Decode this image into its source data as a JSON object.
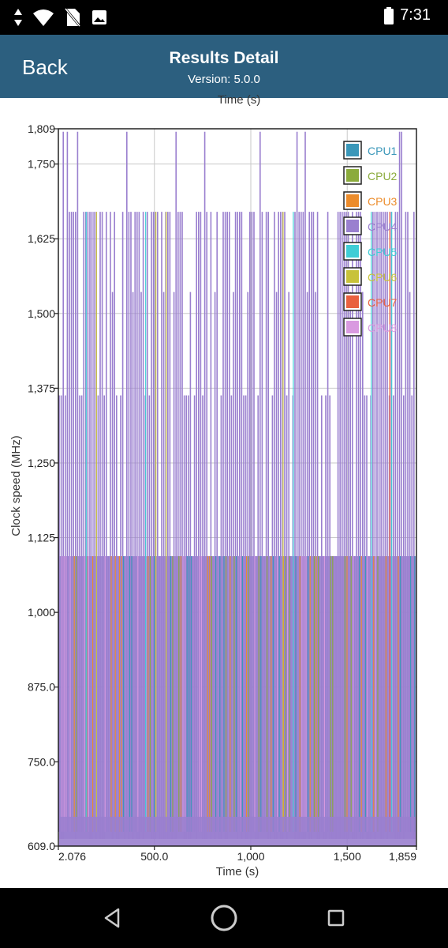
{
  "status_bar": {
    "time": "7:31",
    "icons": [
      "data-arrows-icon",
      "wifi-icon",
      "no-sim-icon",
      "image-notification-icon",
      "battery-icon"
    ]
  },
  "header": {
    "back_label": "Back",
    "title": "Results Detail",
    "subtitle": "Version: 5.0.0",
    "background": "#2c5f7f"
  },
  "chart_data": {
    "type": "line",
    "top_clipped_label": "Time (s)",
    "xlabel": "Time (s)",
    "ylabel": "Clock speed (MHz)",
    "xlim": [
      2.076,
      1859
    ],
    "ylim": [
      609,
      1809
    ],
    "x_ticks": [
      "2.076",
      "500.0",
      "1,000",
      "1,500",
      "1,859"
    ],
    "x_tick_values": [
      2.076,
      500,
      1000,
      1500,
      1859
    ],
    "y_ticks": [
      "609.0",
      "750.0",
      "875.0",
      "1,000",
      "1,125",
      "1,250",
      "1,375",
      "1,500",
      "1,625",
      "1,750",
      "1,809"
    ],
    "y_tick_values": [
      609,
      750,
      875,
      1000,
      1125,
      1250,
      1375,
      1500,
      1625,
      1750,
      1809
    ],
    "grid": true,
    "legend_position": "top-right",
    "frequency_levels_mhz": [
      633,
      1094,
      1363,
      1536,
      1670,
      1804
    ],
    "series": [
      {
        "name": "CPU1",
        "color": "#3a97b9",
        "pattern": "alternates between 633 and 1094 MHz"
      },
      {
        "name": "CPU2",
        "color": "#8bab3c",
        "pattern": "alternates between 633 and 1094 MHz"
      },
      {
        "name": "CPU3",
        "color": "#ec8c2b",
        "pattern": "alternates between 633 and 1094 MHz"
      },
      {
        "name": "CPU4",
        "color": "#9a7fcf",
        "pattern": "alternates between 633 and 1670 MHz, peaks at 1804 MHz"
      },
      {
        "name": "CPU5",
        "color": "#3fcdd6",
        "pattern": "alternates between 633 and 1670 MHz"
      },
      {
        "name": "CPU6",
        "color": "#c8c23a",
        "pattern": "alternates between 633 and 1670 MHz"
      },
      {
        "name": "CPU7",
        "color": "#e9613f",
        "pattern": "alternates between 633 and 1670 MHz"
      },
      {
        "name": "CPU8",
        "color": "#d99ae0",
        "pattern": "alternates between 633 and 1094 MHz"
      }
    ]
  },
  "nav": {
    "icons": [
      "back-triangle-icon",
      "home-circle-icon",
      "recents-square-icon"
    ]
  }
}
